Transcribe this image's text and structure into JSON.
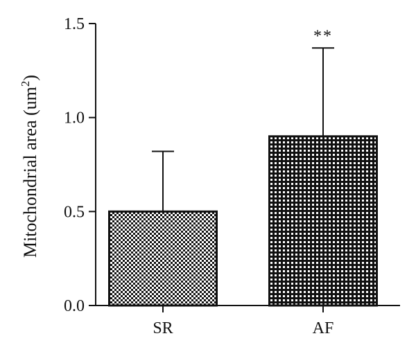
{
  "chart_data": {
    "type": "bar",
    "categories": [
      "SR",
      "AF"
    ],
    "values": [
      0.5,
      0.9
    ],
    "error_upper": [
      0.82,
      1.37
    ],
    "annotations": [
      {
        "category": "AF",
        "text": "**"
      }
    ],
    "ylabel": "Mitochondrial area (um",
    "ylabel_sup": "2",
    "ylabel_close": ")",
    "yticks": [
      "0.0",
      "0.5",
      "1.0",
      "1.5"
    ],
    "ylim": [
      0,
      1.5
    ],
    "grid": false,
    "fill": {
      "SR": {
        "bg": "#ffffff",
        "dot": "#111111",
        "pattern": "light-checker"
      },
      "AF": {
        "bg": "#111111",
        "dot": "#ffffff",
        "pattern": "dark-checker"
      }
    }
  }
}
